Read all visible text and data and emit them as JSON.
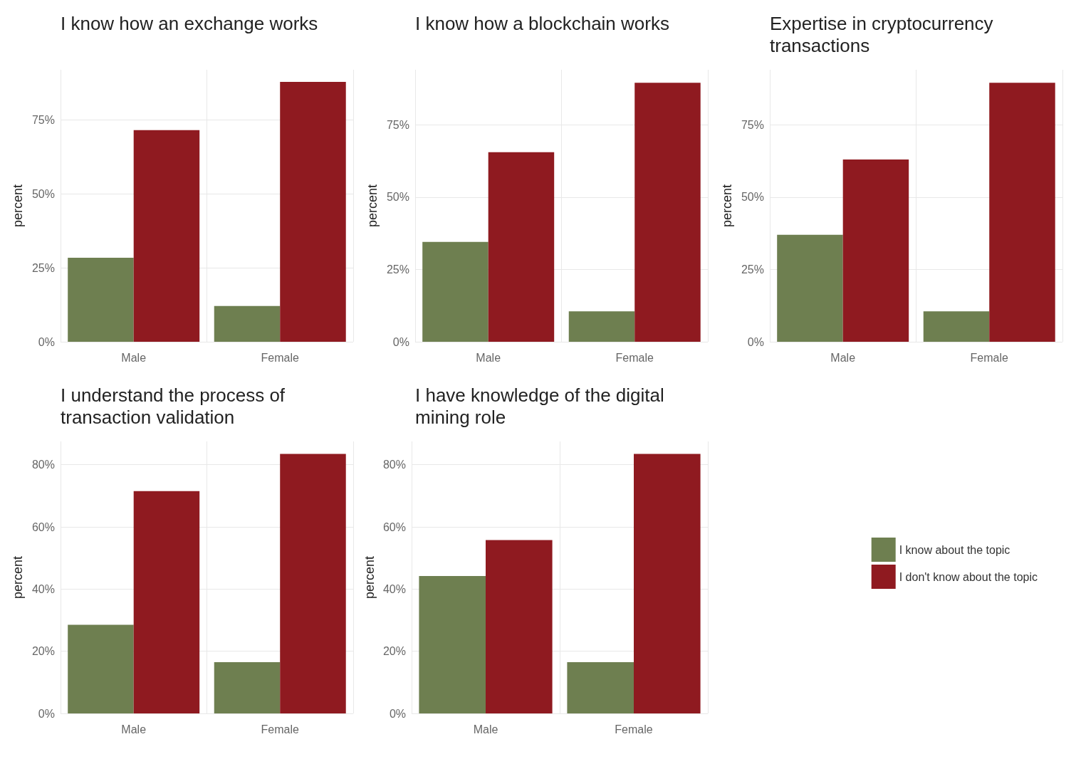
{
  "chart_data": [
    {
      "type": "bar",
      "title": "I know how an exchange works",
      "ylabel": "percent",
      "categories": [
        "Male",
        "Female"
      ],
      "series": [
        {
          "color": "#6e7f50",
          "values": [
            28.4,
            12.1
          ]
        },
        {
          "color": "#8f1a20",
          "values": [
            71.6,
            87.9
          ]
        }
      ],
      "ylim": [
        0,
        92
      ],
      "yticks": [
        {
          "value": 0,
          "label": "0%"
        },
        {
          "value": 25,
          "label": "25%"
        },
        {
          "value": 50,
          "label": "50%"
        },
        {
          "value": 75,
          "label": "75%"
        }
      ],
      "grid": true,
      "legend": false
    },
    {
      "type": "bar",
      "title": "I know how a blockchain works",
      "ylabel": "percent",
      "categories": [
        "Male",
        "Female"
      ],
      "series": [
        {
          "color": "#6e7f50",
          "values": [
            34.5,
            10.5
          ]
        },
        {
          "color": "#8f1a20",
          "values": [
            65.5,
            89.5
          ]
        }
      ],
      "ylim": [
        0,
        94
      ],
      "yticks": [
        {
          "value": 0,
          "label": "0%"
        },
        {
          "value": 25,
          "label": "25%"
        },
        {
          "value": 50,
          "label": "50%"
        },
        {
          "value": 75,
          "label": "75%"
        }
      ],
      "grid": true,
      "legend": false
    },
    {
      "type": "bar",
      "title": "Expertise in cryptocurrency transactions",
      "ylabel": "percent",
      "categories": [
        "Male",
        "Female"
      ],
      "series": [
        {
          "color": "#6e7f50",
          "values": [
            37,
            10.5
          ]
        },
        {
          "color": "#8f1a20",
          "values": [
            63,
            89.5
          ]
        }
      ],
      "ylim": [
        0,
        94
      ],
      "yticks": [
        {
          "value": 0,
          "label": "0%"
        },
        {
          "value": 25,
          "label": "25%"
        },
        {
          "value": 50,
          "label": "50%"
        },
        {
          "value": 75,
          "label": "75%"
        }
      ],
      "grid": true,
      "legend": false
    },
    {
      "type": "bar",
      "title": "I understand the process of transaction validation",
      "ylabel": "percent",
      "categories": [
        "Male",
        "Female"
      ],
      "series": [
        {
          "color": "#6e7f50",
          "values": [
            28.5,
            16.5
          ]
        },
        {
          "color": "#8f1a20",
          "values": [
            71.5,
            83.5
          ]
        }
      ],
      "ylim": [
        0,
        87.5
      ],
      "yticks": [
        {
          "value": 0,
          "label": "0%"
        },
        {
          "value": 20,
          "label": "20%"
        },
        {
          "value": 40,
          "label": "40%"
        },
        {
          "value": 60,
          "label": "60%"
        },
        {
          "value": 80,
          "label": "80%"
        }
      ],
      "grid": true,
      "legend": false
    },
    {
      "type": "bar",
      "title": "I have knowledge of the digital mining role",
      "ylabel": "percent",
      "categories": [
        "Male",
        "Female"
      ],
      "series": [
        {
          "name": "I know about the topic",
          "color": "#6e7f50",
          "values": [
            44.2,
            16.5
          ]
        },
        {
          "name": "I don't know about the topic",
          "color": "#8f1a20",
          "values": [
            55.8,
            83.5
          ]
        }
      ],
      "ylim": [
        0,
        87.5
      ],
      "yticks": [
        {
          "value": 0,
          "label": "0%"
        },
        {
          "value": 20,
          "label": "20%"
        },
        {
          "value": 40,
          "label": "40%"
        },
        {
          "value": 60,
          "label": "60%"
        },
        {
          "value": 80,
          "label": "80%"
        }
      ],
      "grid": true,
      "legend": "right"
    }
  ]
}
